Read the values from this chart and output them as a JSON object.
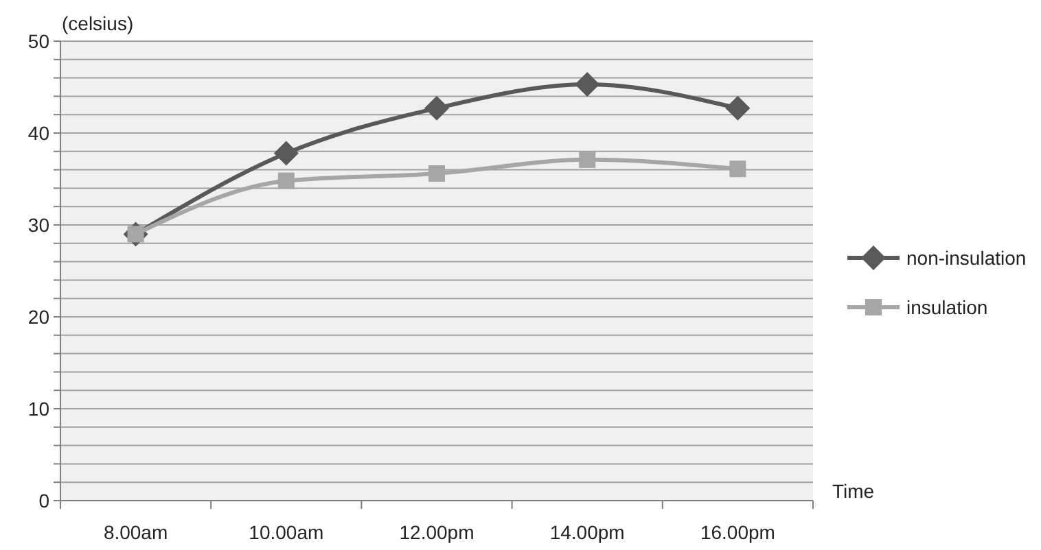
{
  "chart_data": {
    "type": "line",
    "ylabel": "(celsius)",
    "xlabel": "Time",
    "categories": [
      "8.00am",
      "10.00am",
      "12.00pm",
      "14.00pm",
      "16.00pm"
    ],
    "series": [
      {
        "name": "non-insulation",
        "color": "#595959",
        "marker": "diamond",
        "values": [
          29,
          37.8,
          42.7,
          45.3,
          42.7
        ]
      },
      {
        "name": "insulation",
        "color": "#a6a6a6",
        "marker": "square",
        "values": [
          29,
          34.8,
          35.6,
          37.1,
          36.1
        ]
      }
    ],
    "ylim": [
      0,
      50
    ],
    "yticks": [
      0,
      {
        "value": 2,
        "label": null
      },
      {
        "value": 4,
        "label": null
      },
      {
        "value": 6,
        "label": null
      },
      {
        "value": 8,
        "label": null
      },
      10,
      {
        "value": 12,
        "label": null
      },
      {
        "value": 14,
        "label": null
      },
      {
        "value": 16,
        "label": null
      },
      {
        "value": 18,
        "label": null
      },
      20,
      {
        "value": 22,
        "label": null
      },
      {
        "value": 24,
        "label": null
      },
      {
        "value": 26,
        "label": null
      },
      {
        "value": 28,
        "label": null
      },
      30,
      {
        "value": 32,
        "label": null
      },
      {
        "value": 34,
        "label": null
      },
      {
        "value": 36,
        "label": null
      },
      {
        "value": 38,
        "label": null
      },
      40,
      {
        "value": 42,
        "label": null
      },
      {
        "value": 44,
        "label": null
      },
      {
        "value": 46,
        "label": null
      },
      {
        "value": 48,
        "label": null
      },
      50
    ],
    "grid": "y",
    "legend": "right"
  }
}
